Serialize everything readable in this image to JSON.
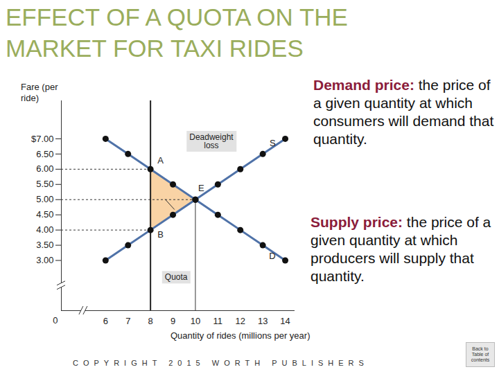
{
  "chart_data": {
    "type": "line",
    "title": "EFFECT OF A QUOTA ON THE MARKET FOR TAXI RIDES",
    "xlabel": "Quantity of rides (millions per year)",
    "ylabel": "Fare (per ride)",
    "x": [
      6,
      7,
      8,
      9,
      10,
      11,
      12,
      13,
      14
    ],
    "series": [
      {
        "name": "D",
        "color": "#4f72a8",
        "values": [
          7,
          6.5,
          6,
          5.5,
          5,
          4.5,
          4,
          3.5,
          3
        ]
      },
      {
        "name": "S",
        "color": "#4f72a8",
        "values": [
          3,
          3.5,
          4,
          4.5,
          5,
          5.5,
          6,
          6.5,
          7
        ]
      }
    ],
    "marker": "circle",
    "xlim": [
      4.03,
      14.43
    ],
    "ylim": [
      1.35,
      8.25
    ],
    "xticks": [
      6,
      7,
      8,
      9,
      10,
      11,
      12,
      13,
      14
    ],
    "yticks": [
      {
        "value": 3,
        "label": "3.00"
      },
      {
        "value": 3.5,
        "label": "3.50"
      },
      {
        "value": 4,
        "label": "4.00"
      },
      {
        "value": 4.5,
        "label": "4.50"
      },
      {
        "value": 5,
        "label": "5.00"
      },
      {
        "value": 5.5,
        "label": "5.50"
      },
      {
        "value": 6,
        "label": "6.00"
      },
      {
        "value": 6.5,
        "label": "6.50"
      },
      {
        "value": 7,
        "label": "$7.00"
      }
    ],
    "grid": false,
    "origin_label": "0",
    "quota": {
      "label": "Quota",
      "x": 8,
      "demand_price": {
        "label": "A",
        "y": 6
      },
      "supply_price": {
        "label": "B",
        "y": 4
      }
    },
    "equilibrium": {
      "label": "E",
      "x": 10,
      "y": 5
    },
    "deadweight_loss_label": "Deadweight loss",
    "definitions": [
      {
        "term": "Demand price:",
        "text": "the price of a given quantity at which consumers will demand that quantity."
      },
      {
        "term": "Supply price:",
        "text": "the price of a given quantity at which producers will supply that quantity."
      }
    ],
    "footer": "COPYRIGHT 2015 WORTH PUBLISHERS",
    "nav_button": "Back to Table of contents"
  }
}
